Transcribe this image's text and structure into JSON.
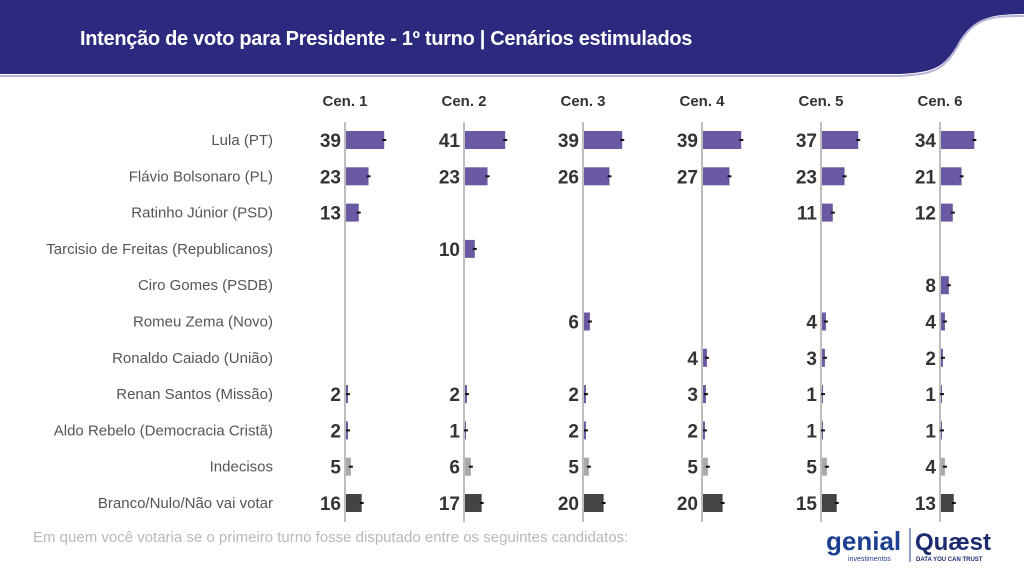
{
  "header": {
    "title": "Intenção de voto para Presidente - 1º turno | Cenários estimulados"
  },
  "footer": {
    "note": "Em quem você votaria se o primeiro turno fosse disputado entre os seguintes candidatos:",
    "logo_left": "genial investimentos",
    "logo_right": "Quaest",
    "logo_right_tagline": "DATA YOU CAN TRUST"
  },
  "colors": {
    "banner": "#2b2a7e",
    "candidate": "#6a58a3",
    "undecided": "#a9a9a9",
    "blank": "#444444"
  },
  "chart_data": {
    "type": "bar",
    "orientation": "horizontal",
    "title": "Intenção de voto para Presidente - 1º turno | Cenários estimulados",
    "columns": [
      "Cen. 1",
      "Cen. 2",
      "Cen. 3",
      "Cen. 4",
      "Cen. 5",
      "Cen. 6"
    ],
    "categories": [
      "Lula (PT)",
      "Flávio Bolsonaro (PL)",
      "Ratinho Júnior (PSD)",
      "Tarcisio de Freitas (Republicanos)",
      "Ciro Gomes (PSDB)",
      "Romeu Zema (Novo)",
      "Ronaldo Caiado (União)",
      "Renan Santos (Missão)",
      "Aldo Rebelo (Democracia Cristã)",
      "Indecisos",
      "Branco/Nulo/Não vai votar"
    ],
    "category_types": [
      "candidate",
      "candidate",
      "candidate",
      "candidate",
      "candidate",
      "candidate",
      "candidate",
      "candidate",
      "candidate",
      "undecided",
      "blank"
    ],
    "series": [
      {
        "name": "Cen. 1",
        "values": [
          39,
          23,
          13,
          null,
          null,
          null,
          null,
          2,
          2,
          5,
          16
        ]
      },
      {
        "name": "Cen. 2",
        "values": [
          41,
          23,
          null,
          10,
          null,
          null,
          null,
          2,
          1,
          6,
          17
        ]
      },
      {
        "name": "Cen. 3",
        "values": [
          39,
          26,
          null,
          null,
          null,
          6,
          null,
          2,
          2,
          5,
          20
        ]
      },
      {
        "name": "Cen. 4",
        "values": [
          39,
          27,
          null,
          null,
          null,
          null,
          4,
          3,
          2,
          5,
          20
        ]
      },
      {
        "name": "Cen. 5",
        "values": [
          37,
          23,
          11,
          null,
          null,
          4,
          3,
          1,
          1,
          5,
          15
        ]
      },
      {
        "name": "Cen. 6",
        "values": [
          34,
          21,
          12,
          null,
          8,
          4,
          2,
          1,
          1,
          4,
          13
        ]
      }
    ],
    "error_bars": true,
    "grid": false,
    "legend": "none"
  }
}
